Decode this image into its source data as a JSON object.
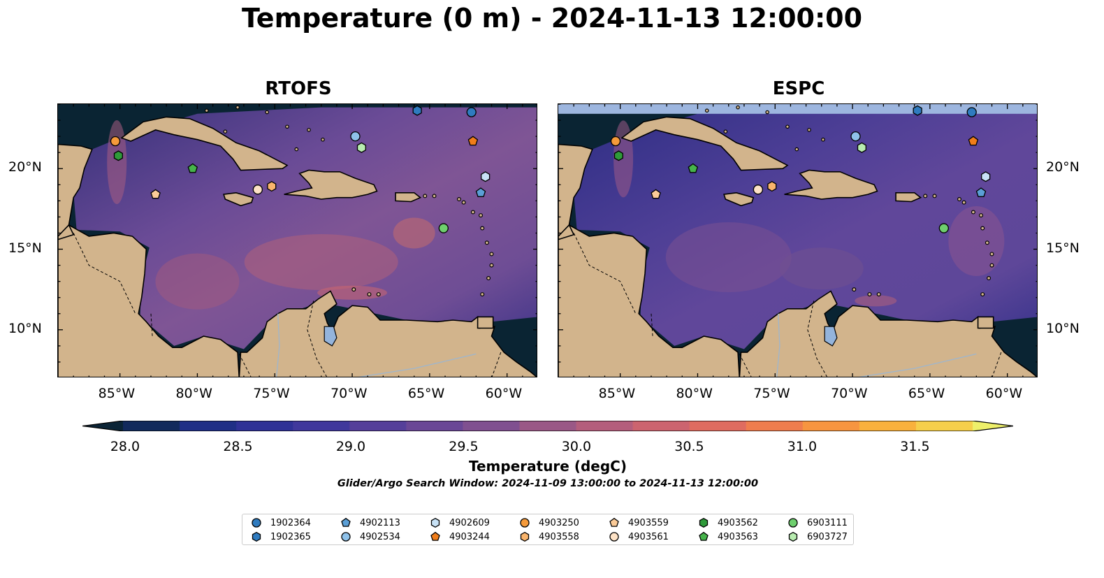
{
  "figure": {
    "title": "Temperature (0 m) - 2024-11-13 12:00:00",
    "panels": [
      {
        "title": "RTOFS"
      },
      {
        "title": "ESPC"
      }
    ],
    "lon_ticks": [
      "85°W",
      "80°W",
      "75°W",
      "70°W",
      "65°W",
      "60°W"
    ],
    "lat_ticks": [
      "20°N",
      "15°N",
      "10°N"
    ],
    "colorbar": {
      "label": "Temperature (degC)",
      "ticks": [
        "28.0",
        "28.5",
        "29.0",
        "29.5",
        "30.0",
        "30.5",
        "31.0",
        "31.5"
      ],
      "colors": [
        "#0b2436",
        "#122a5c",
        "#1f2f86",
        "#2f3196",
        "#40389c",
        "#553f9a",
        "#6a4796",
        "#805090",
        "#9a5886",
        "#b45e7c",
        "#cc646f",
        "#df6c60",
        "#ef7d4e",
        "#f79540",
        "#f9b13d",
        "#f6cf4b",
        "#eef06a"
      ]
    },
    "search_window": "Glider/Argo Search Window: 2024-11-09 13:00:00 to 2024-11-13 12:00:00"
  },
  "legend": [
    {
      "id": "1902364",
      "marker": "circle",
      "color": "#2f7bbf"
    },
    {
      "id": "1902365",
      "marker": "hexagon",
      "color": "#2f7bbf"
    },
    {
      "id": "4902113",
      "marker": "pentagon",
      "color": "#5b9fd6"
    },
    {
      "id": "4902534",
      "marker": "circle",
      "color": "#8fc2ea"
    },
    {
      "id": "4902609",
      "marker": "hexagon",
      "color": "#c8e2f6"
    },
    {
      "id": "4903244",
      "marker": "pentagon",
      "color": "#f07d1a"
    },
    {
      "id": "4903250",
      "marker": "circle",
      "color": "#f59a3a"
    },
    {
      "id": "4903558",
      "marker": "hexagon",
      "color": "#f9b46c"
    },
    {
      "id": "4903559",
      "marker": "pentagon",
      "color": "#fbcb98"
    },
    {
      "id": "4903561",
      "marker": "circle",
      "color": "#fde2c6"
    },
    {
      "id": "4903562",
      "marker": "hexagon",
      "color": "#2f9a3a"
    },
    {
      "id": "4903563",
      "marker": "pentagon",
      "color": "#46b34b"
    },
    {
      "id": "6903111",
      "marker": "circle",
      "color": "#6ecf6e"
    },
    {
      "id": "6903727",
      "marker": "hexagon",
      "color": "#b8ecb0"
    }
  ],
  "observations": [
    {
      "id": "1902364",
      "lon": -62.3,
      "lat": 23.5
    },
    {
      "id": "1902365",
      "lon": -65.8,
      "lat": 23.6
    },
    {
      "id": "4902113",
      "lon": -61.7,
      "lat": 18.5
    },
    {
      "id": "4902534",
      "lon": -69.8,
      "lat": 22.0
    },
    {
      "id": "4902609",
      "lon": -61.4,
      "lat": 19.5
    },
    {
      "id": "4903244",
      "lon": -62.2,
      "lat": 21.7
    },
    {
      "id": "4903250",
      "lon": -85.3,
      "lat": 21.7
    },
    {
      "id": "4903558",
      "lon": -75.2,
      "lat": 18.9
    },
    {
      "id": "4903559",
      "lon": -82.7,
      "lat": 18.4
    },
    {
      "id": "4903561",
      "lon": -76.1,
      "lat": 18.7
    },
    {
      "id": "4903562",
      "lon": -85.1,
      "lat": 20.8
    },
    {
      "id": "4903563",
      "lon": -80.3,
      "lat": 20.0
    },
    {
      "id": "6903111",
      "lon": -64.1,
      "lat": 16.3
    },
    {
      "id": "6903727",
      "lon": -69.4,
      "lat": 21.3
    }
  ],
  "map_extent": {
    "lon": [
      -89,
      -58
    ],
    "lat": [
      7,
      24
    ]
  }
}
